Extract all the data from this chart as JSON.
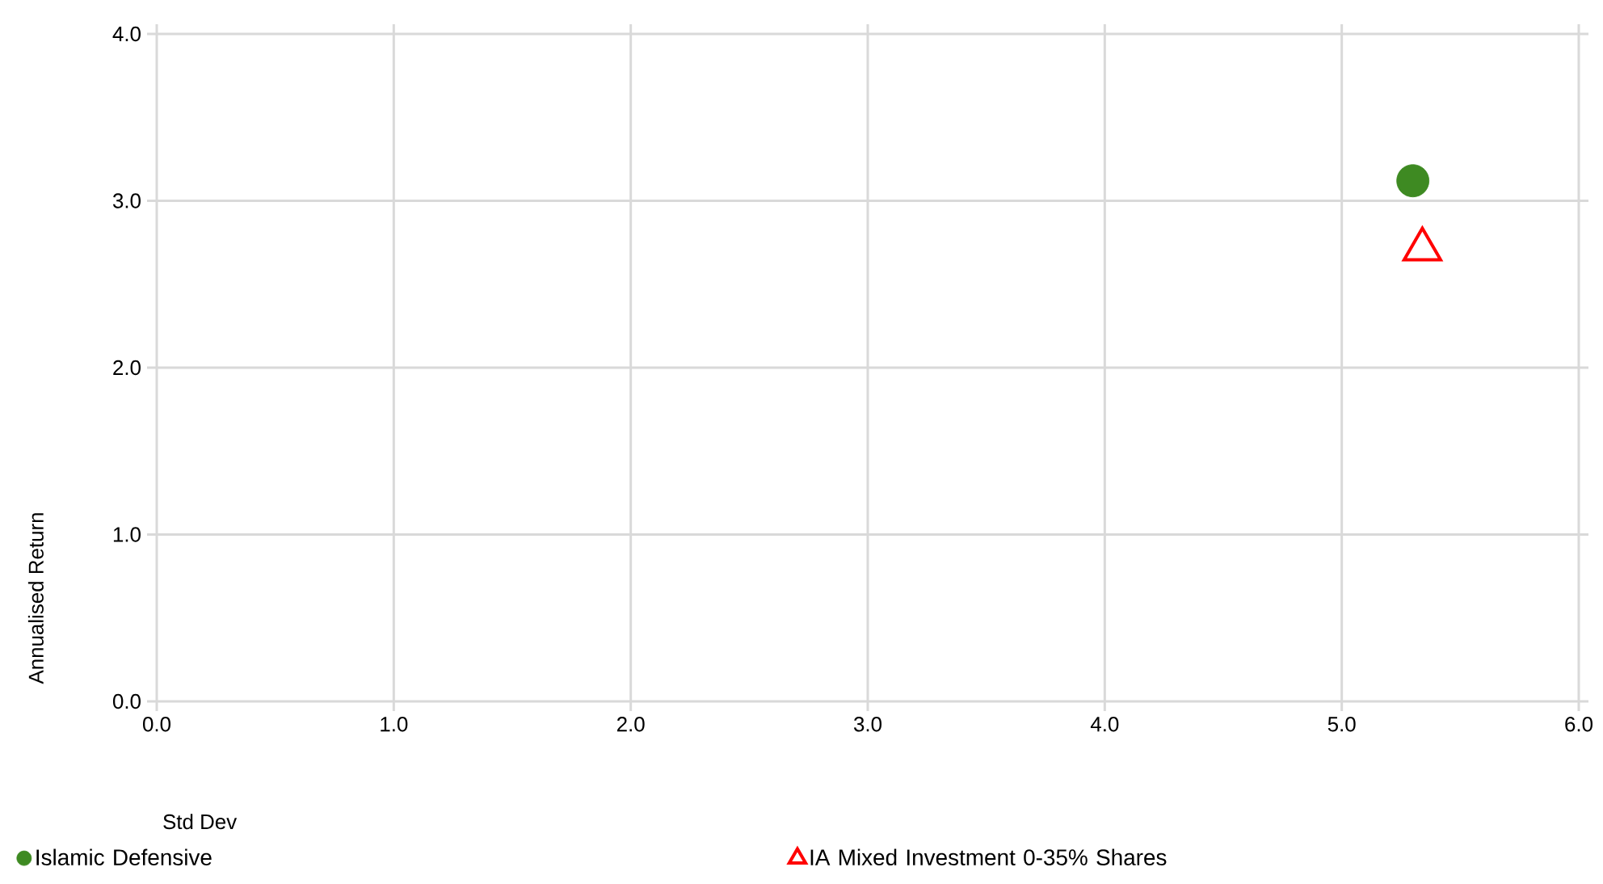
{
  "chart_data": {
    "type": "scatter",
    "xlabel": "Std Dev",
    "ylabel": "Annualised Return",
    "xlim": [
      0,
      6
    ],
    "ylim": [
      0,
      4
    ],
    "xticks": [
      {
        "value": 0,
        "label": "0.0"
      },
      {
        "value": 1,
        "label": "1.0"
      },
      {
        "value": 2,
        "label": "2.0"
      },
      {
        "value": 3,
        "label": "3.0"
      },
      {
        "value": 4,
        "label": "4.0"
      },
      {
        "value": 5,
        "label": "5.0"
      },
      {
        "value": 6,
        "label": "6.0"
      }
    ],
    "yticks": [
      {
        "value": 0,
        "label": "0.0"
      },
      {
        "value": 1,
        "label": "1.0"
      },
      {
        "value": 2,
        "label": "2.0"
      },
      {
        "value": 3,
        "label": "3.0"
      },
      {
        "value": 4,
        "label": "4.0"
      }
    ],
    "grid": true,
    "legend": "bottom",
    "series": [
      {
        "name": "Islamic Defensive",
        "color": "#3e8a22",
        "marker": "circle",
        "x": [
          5.3
        ],
        "values": [
          3.12
        ]
      },
      {
        "name": "IA Mixed Investment 0-35% Shares",
        "color": "#ff0000",
        "marker": "triangle",
        "x": [
          5.34
        ],
        "values": [
          2.71
        ]
      }
    ]
  }
}
